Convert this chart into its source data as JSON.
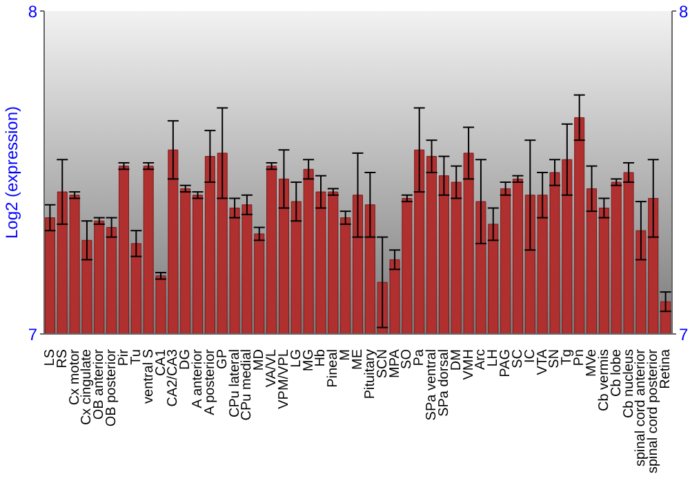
{
  "chart_data": {
    "type": "bar",
    "ylabel": "Log2 (expression)",
    "categories": [
      "LS",
      "RS",
      "Cx motor",
      "Cx cingulate",
      "OB anterior",
      "OB posterior",
      "Pir",
      "Tu",
      "ventral S",
      "CA1",
      "CA2/CA3",
      "DG",
      "A anterior",
      "A posterior",
      "GP",
      "CPu lateral",
      "CPu medial",
      "MD",
      "VA/VL",
      "VPM/VPL",
      "LG",
      "MG",
      "Hb",
      "Pineal",
      "M",
      "ME",
      "Pituitary",
      "SCN",
      "MPA",
      "SO",
      "Pa",
      "SPa ventral",
      "SPa dorsal",
      "DM",
      "VMH",
      "Arc",
      "LH",
      "PAG",
      "SC",
      "IC",
      "VTA",
      "SN",
      "Tg",
      "Pn",
      "MVe",
      "Cb vermis",
      "Cb lobe",
      "Cb nucleus",
      "spinal cord anterior",
      "spinal cord posterior",
      "Retina"
    ],
    "values": [
      7.36,
      7.44,
      7.43,
      7.29,
      7.35,
      7.33,
      7.52,
      7.28,
      7.52,
      7.18,
      7.57,
      7.45,
      7.43,
      7.55,
      7.56,
      7.39,
      7.4,
      7.31,
      7.52,
      7.48,
      7.41,
      7.51,
      7.44,
      7.44,
      7.36,
      7.43,
      7.4,
      7.16,
      7.23,
      7.42,
      7.57,
      7.55,
      7.49,
      7.47,
      7.56,
      7.41,
      7.34,
      7.45,
      7.48,
      7.43,
      7.43,
      7.5,
      7.54,
      7.67,
      7.45,
      7.39,
      7.47,
      7.5,
      7.32,
      7.42,
      7.1
    ],
    "errors": [
      0.04,
      0.1,
      0.01,
      0.06,
      0.01,
      0.03,
      0.01,
      0.04,
      0.01,
      0.01,
      0.09,
      0.01,
      0.01,
      0.08,
      0.14,
      0.03,
      0.03,
      0.02,
      0.01,
      0.09,
      0.06,
      0.03,
      0.05,
      0.01,
      0.02,
      0.13,
      0.1,
      0.14,
      0.03,
      0.01,
      0.13,
      0.05,
      0.06,
      0.05,
      0.08,
      0.13,
      0.05,
      0.02,
      0.01,
      0.17,
      0.07,
      0.04,
      0.11,
      0.07,
      0.07,
      0.03,
      0.01,
      0.03,
      0.09,
      0.12,
      0.03
    ],
    "color": "#b03030",
    "ylim": [
      7,
      8
    ],
    "yticks": [
      7,
      8
    ],
    "y2lim": [
      7,
      8
    ],
    "y2ticks": [
      7,
      8
    ],
    "grid": false
  }
}
